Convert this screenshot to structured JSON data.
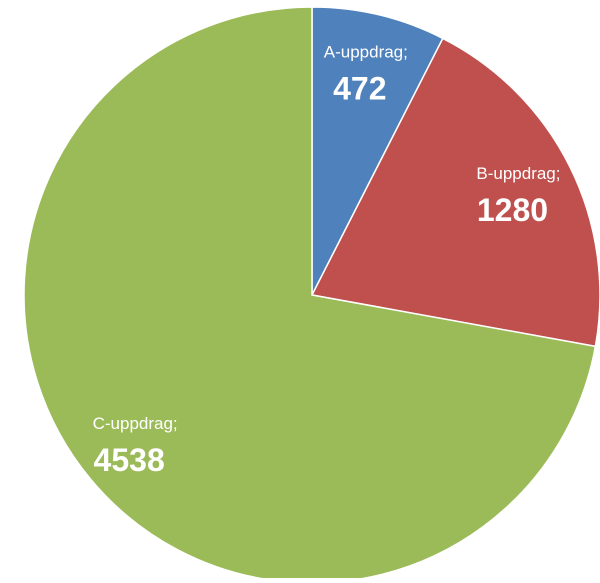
{
  "chart_data": {
    "type": "pie",
    "categories": [
      "A-uppdrag;",
      "B-uppdrag;",
      "C-uppdrag;"
    ],
    "values": [
      472,
      1280,
      4538
    ],
    "colors": [
      "#4f81bd",
      "#c0504d",
      "#9bbb59"
    ]
  }
}
